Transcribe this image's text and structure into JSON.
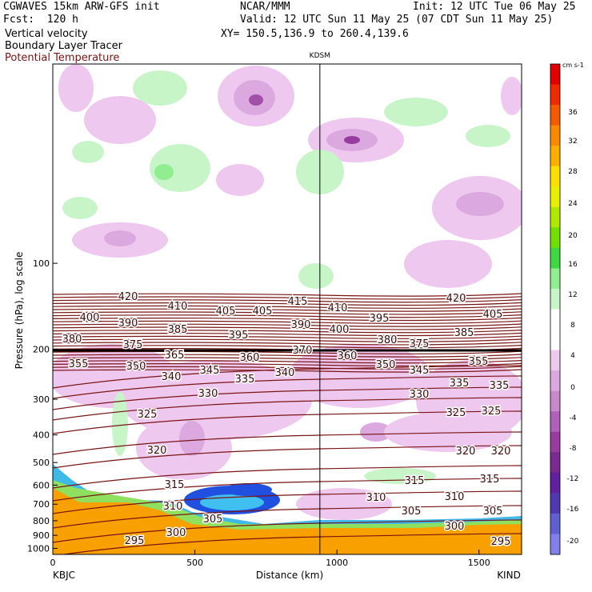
{
  "header": {
    "model": "CGWAVES 15km ARW-GFS init",
    "center": "NCAR/MMM",
    "init": "Init: 12 UTC Tue 06 May 25",
    "forecast": "Fcst:  120 h",
    "valid": "Valid: 12 UTC Sun 11 May 25 (07 CDT Sun 11 May 25)",
    "field1": "Vertical velocity",
    "field2": "Boundary Layer Tracer",
    "field3": "Potential Temperature",
    "xy": "XY= 150.5,136.9 to 260.4,139.6"
  },
  "colors": {
    "theta": "#7a1414",
    "cross_line": "#000000"
  },
  "chart_data": {
    "type": "heatmap",
    "title": "",
    "xlabel": "Distance (km)",
    "ylabel": "Pressure (hPa), log scale",
    "xlim": [
      0,
      1650
    ],
    "ylim": [
      1050,
      20
    ],
    "x_ticks": [
      "0",
      "500",
      "1000",
      "1500"
    ],
    "y_ticks": [
      "100",
      "200",
      "300",
      "400",
      "500",
      "600",
      "700",
      "800",
      "900",
      "1000"
    ],
    "left_station": "KBJC",
    "right_station": "KIND",
    "mid_station": "KDSM",
    "mid_station_km": 940,
    "colorbar": {
      "unit": "cm s-1",
      "ticks": [
        "36",
        "32",
        "28",
        "24",
        "20",
        "16",
        "12",
        "8",
        "4",
        "0",
        "-4",
        "-8",
        "-12",
        "-16",
        "-20"
      ],
      "colors": [
        "#e00000",
        "#ee2a00",
        "#f55a00",
        "#f98a00",
        "#fbb000",
        "#fce000",
        "#e8f000",
        "#b0e800",
        "#70e000",
        "#40d840",
        "#90ee90",
        "#c8f5c8",
        "#ffffff",
        "#ffffff",
        "#eec8ee",
        "#dca8e0",
        "#c888cc",
        "#b060b8",
        "#983ca0",
        "#7a2a90",
        "#6020a0",
        "#5038b0",
        "#6060d0",
        "#8080e8"
      ]
    },
    "theta_labels": [
      "420",
      "410",
      "405",
      "405",
      "415",
      "410",
      "420",
      "405",
      "400",
      "395",
      "390",
      "385",
      "395",
      "390",
      "400",
      "385",
      "380",
      "380",
      "375",
      "375",
      "365",
      "360",
      "370",
      "360",
      "355",
      "355",
      "350",
      "345",
      "340",
      "335",
      "340",
      "350",
      "345",
      "335",
      "335",
      "330",
      "330",
      "325",
      "325",
      "325",
      "320",
      "320",
      "320",
      "315",
      "315",
      "315",
      "310",
      "310",
      "305",
      "305",
      "300",
      "300",
      "295",
      "295",
      "305",
      "310"
    ]
  }
}
